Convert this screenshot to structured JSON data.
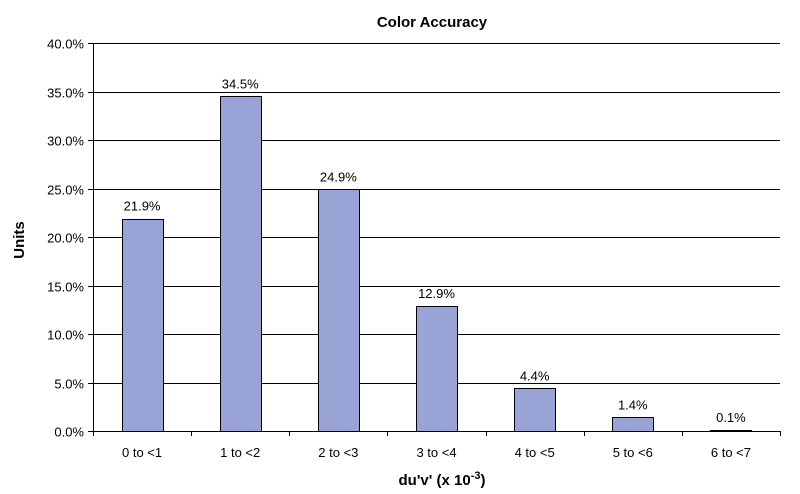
{
  "chart_data": {
    "type": "bar",
    "title": "Color Accuracy",
    "xlabel": "du'v'  (x 10",
    "xlabel_superscript": "-3",
    "xlabel_suffix": ")",
    "ylabel": "Units",
    "categories": [
      "0 to <1",
      "1 to <2",
      "2 to <3",
      "3 to <4",
      "4 to <5",
      "5 to <6",
      "6 to <7"
    ],
    "values": [
      21.9,
      34.5,
      24.9,
      12.9,
      4.4,
      1.4,
      0.1
    ],
    "data_labels": [
      "21.9%",
      "34.5%",
      "24.9%",
      "12.9%",
      "4.4%",
      "1.4%",
      "0.1%"
    ],
    "ylim": [
      0,
      40
    ],
    "yticks": [
      0,
      5,
      10,
      15,
      20,
      25,
      30,
      35,
      40
    ],
    "ytick_labels": [
      "0.0%",
      "5.0%",
      "10.0%",
      "15.0%",
      "20.0%",
      "25.0%",
      "30.0%",
      "35.0%",
      "40.0%"
    ],
    "grid": true,
    "bar_color": "#99a3d6"
  }
}
